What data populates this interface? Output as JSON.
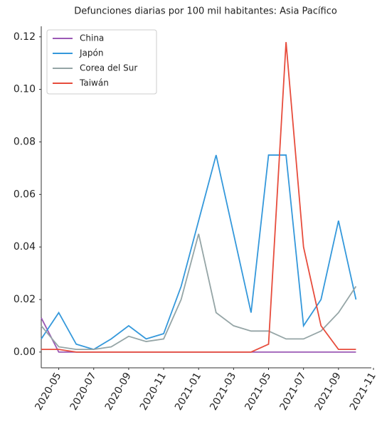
{
  "chart_data": {
    "type": "line",
    "title": "Defunciones diarias por 100 mil habitantes: Asia Pacífico",
    "x": [
      "2020-04",
      "2020-05",
      "2020-06",
      "2020-07",
      "2020-08",
      "2020-09",
      "2020-10",
      "2020-11",
      "2020-12",
      "2021-01",
      "2021-02",
      "2021-03",
      "2021-04",
      "2021-05",
      "2021-06",
      "2021-07",
      "2021-08",
      "2021-09",
      "2021-10"
    ],
    "series": [
      {
        "name": "China",
        "color": "#9b59b6",
        "values": [
          0.013,
          0,
          0,
          0,
          0,
          0,
          0,
          0,
          0,
          0,
          0,
          0,
          0,
          0,
          0,
          0,
          0,
          0,
          0
        ]
      },
      {
        "name": "Japón",
        "color": "#3498db",
        "values": [
          0.005,
          0.015,
          0.003,
          0.001,
          0.005,
          0.01,
          0.005,
          0.007,
          0.025,
          0.05,
          0.075,
          0.045,
          0.015,
          0.075,
          0.075,
          0.01,
          0.02,
          0.05,
          0.02
        ]
      },
      {
        "name": "Corea del Sur",
        "color": "#95a5a6",
        "values": [
          0.01,
          0.002,
          0.001,
          0.001,
          0.002,
          0.006,
          0.004,
          0.005,
          0.02,
          0.045,
          0.015,
          0.01,
          0.008,
          0.008,
          0.005,
          0.005,
          0.008,
          0.015,
          0.025
        ]
      },
      {
        "name": "Taiwán",
        "color": "#e74c3c",
        "values": [
          0.001,
          0.001,
          0,
          0,
          0,
          0,
          0,
          0,
          0,
          0,
          0,
          0,
          0,
          0.003,
          0.118,
          0.04,
          0.01,
          0.001,
          0.001
        ]
      }
    ],
    "xlim": [
      "2020-04",
      "2021-11"
    ],
    "xticks": [
      "2020-05",
      "2020-07",
      "2020-09",
      "2020-11",
      "2021-01",
      "2021-03",
      "2021-05",
      "2021-07",
      "2021-09",
      "2021-11"
    ],
    "ylim": [
      -0.006,
      0.124
    ],
    "yticks": [
      {
        "value": 0,
        "label": "0.00"
      },
      {
        "value": 0.02,
        "label": "0.02"
      },
      {
        "value": 0.04,
        "label": "0.04"
      },
      {
        "value": 0.06,
        "label": "0.06"
      },
      {
        "value": 0.08,
        "label": "0.08"
      },
      {
        "value": 0.1,
        "label": "0.10"
      },
      {
        "value": 0.12,
        "label": "0.12"
      }
    ],
    "legend": "upper-left"
  }
}
